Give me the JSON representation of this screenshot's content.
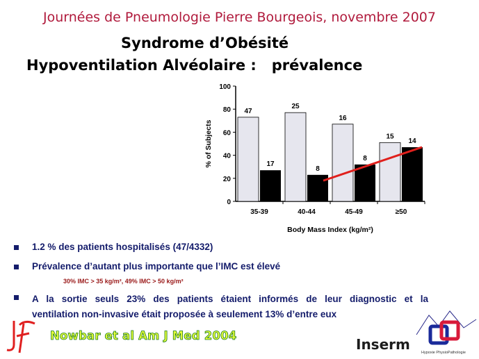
{
  "header": "Journées de Pneumologie Pierre Bourgeois, novembre 2007",
  "title_line1": "Syndrome d’Obésité",
  "title_line2": "Hypoventilation Alvéolaire :   prévalence",
  "chart_data": {
    "type": "bar",
    "title": "",
    "xlabel": "Body Mass Index (kg/m²)",
    "ylabel": "% of Subjects",
    "ylim": [
      0,
      100
    ],
    "yticks": [
      "0",
      "20",
      "40",
      "60",
      "80",
      "100"
    ],
    "categories": [
      "35-39",
      "40-44",
      "45-49",
      "≥50"
    ],
    "series": [
      {
        "values": [
          73,
          77,
          67,
          51
        ],
        "labels": [
          "47",
          "25",
          "16",
          "15"
        ],
        "color": "#e6e6ee"
      },
      {
        "values": [
          27,
          23,
          32,
          47
        ],
        "labels": [
          "17",
          "8",
          "8",
          "14"
        ],
        "color": "#000000"
      }
    ],
    "trend_line": {
      "color": "#e0201c",
      "from": [
        1,
        18
      ],
      "to": [
        3,
        47
      ]
    }
  },
  "bullets": [
    "1.2 % des patients hospitalisés (47/4332)",
    "Prévalence d’autant plus importante que l’IMC est élevé",
    "A la sortie seuls 23% des patients étaient informés de leur diagnostic et la",
    "ventilation non-invasive était proposée à seulement  13%  d’entre eux"
  ],
  "sub_note": "30% IMC > 35 kg/m², 49% IMC > 50 kg/m²",
  "reference": "Nowbar et al Am J Med 2004",
  "logos": {
    "inserm": "Inserm",
    "hp_caption": "Hypoxie PhysioPathologie"
  }
}
